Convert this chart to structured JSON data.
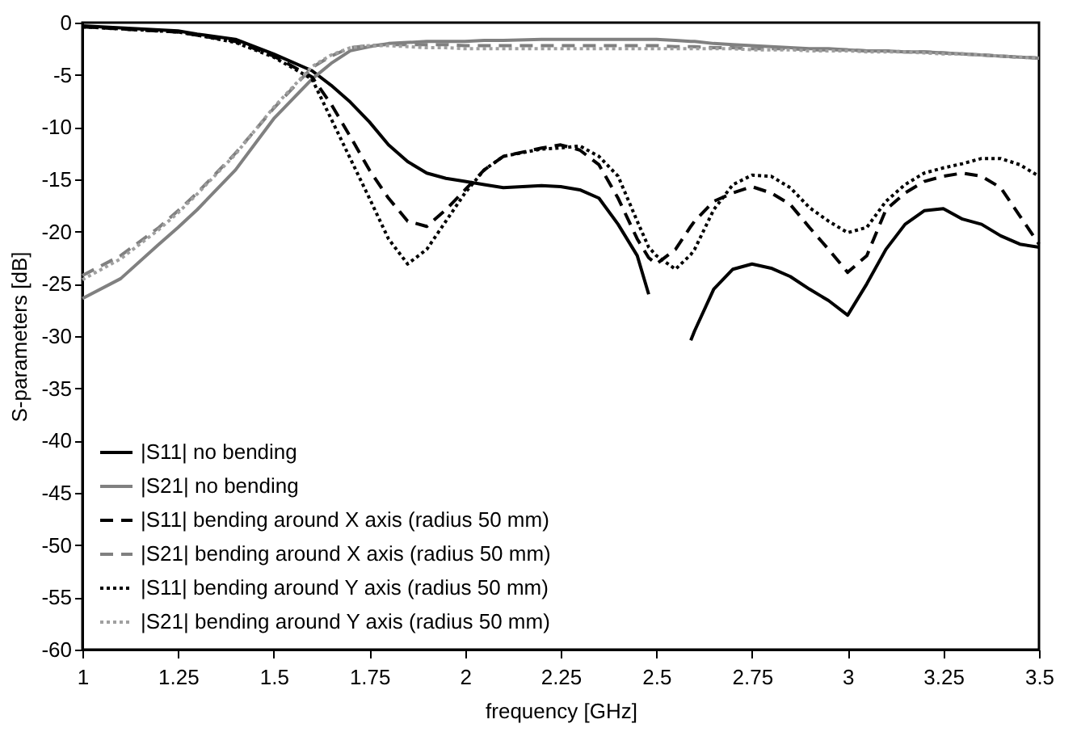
{
  "chart_data": {
    "type": "line",
    "xlabel": "frequency [GHz]",
    "ylabel": "S-parameters [dB]",
    "xlim": [
      1,
      3.5
    ],
    "xticks": [
      1,
      1.25,
      1.5,
      1.75,
      2,
      2.25,
      2.5,
      2.75,
      3,
      3.25,
      3.5
    ],
    "ylim": [
      -60,
      0
    ],
    "yticks": [
      -60,
      -55,
      -50,
      -45,
      -40,
      -35,
      -30,
      -25,
      -20,
      -15,
      -10,
      -5,
      0
    ],
    "grid": false,
    "legend": "bottom left",
    "marker": "none",
    "x": [
      1,
      1.1,
      1.2,
      1.25,
      1.3,
      1.4,
      1.5,
      1.6,
      1.65,
      1.7,
      1.75,
      1.8,
      1.85,
      1.9,
      1.95,
      2,
      2.05,
      2.1,
      2.2,
      2.25,
      2.3,
      2.35,
      2.4,
      2.45,
      2.48,
      2.5,
      2.55,
      2.59,
      2.6,
      2.65,
      2.7,
      2.75,
      2.8,
      2.85,
      2.9,
      2.95,
      3,
      3.05,
      3.1,
      3.15,
      3.2,
      3.25,
      3.3,
      3.35,
      3.4,
      3.45,
      3.5
    ],
    "series": [
      {
        "name": "|S11| no bending",
        "color": "#000000",
        "line_style": "solid",
        "values": [
          -0.3,
          -0.5,
          -0.7,
          -0.8,
          -1.1,
          -1.6,
          -3,
          -4.6,
          -6,
          -7.6,
          -9.5,
          -11.7,
          -13.3,
          -14.4,
          -14.9,
          -15.2,
          -15.5,
          -15.8,
          -15.6,
          -15.7,
          -16.0,
          -16.8,
          -19.3,
          -22.3,
          -26,
          null,
          null,
          -30.4,
          -29.5,
          -25.5,
          -23.6,
          -23.1,
          -23.5,
          -24.3,
          -25.5,
          -26.6,
          -28,
          -25,
          -21.7,
          -19.3,
          -18,
          -17.8,
          -18.8,
          -19.3,
          -20.4,
          -21.2,
          -21.5
        ]
      },
      {
        "name": "|S21| no bending",
        "color": "#808080",
        "line_style": "solid",
        "values": [
          -26.4,
          -24.5,
          -21.2,
          -19.6,
          -17.9,
          -14.1,
          -9.2,
          -5.4,
          -3.9,
          -2.7,
          -2.3,
          -2.0,
          -1.9,
          -1.8,
          -1.8,
          -1.8,
          -1.7,
          -1.7,
          -1.6,
          -1.6,
          -1.6,
          -1.6,
          -1.6,
          -1.6,
          -1.6,
          -1.6,
          -1.7,
          -1.8,
          -1.8,
          -2.0,
          -2.1,
          -2.2,
          -2.3,
          -2.4,
          -2.5,
          -2.5,
          -2.6,
          -2.7,
          -2.7,
          -2.8,
          -2.8,
          -2.9,
          -3.0,
          -3.1,
          -3.2,
          -3.3,
          -3.4
        ]
      },
      {
        "name": "|S11| bending around X axis (radius 50 mm)",
        "color": "#000000",
        "line_style": "dashed",
        "values": [
          -0.4,
          -0.6,
          -0.8,
          -0.9,
          -1.2,
          -1.8,
          -3.2,
          -5.2,
          -7.8,
          -10.9,
          -14.1,
          -16.8,
          -19,
          -19.5,
          -17.9,
          -16,
          -14.1,
          -12.8,
          -12,
          -11.7,
          -12.2,
          -13.6,
          -16.8,
          -20.7,
          -22.5,
          -23.1,
          -21.7,
          -19.5,
          -19,
          -17.1,
          -16.3,
          -15.7,
          -16.3,
          -17.4,
          -19.6,
          -21.7,
          -23.9,
          -22.3,
          -17.9,
          -16.3,
          -15.2,
          -14.7,
          -14.4,
          -14.7,
          -15.8,
          -18.5,
          -21.2
        ]
      },
      {
        "name": "|S21| bending around X axis (radius 50 mm)",
        "color": "#808080",
        "line_style": "dashed",
        "values": [
          -24.2,
          -22.3,
          -19.6,
          -18.0,
          -16.3,
          -12.5,
          -8.2,
          -4.3,
          -3.2,
          -2.4,
          -2.2,
          -2.1,
          -2.1,
          -2.1,
          -2.1,
          -2.2,
          -2.2,
          -2.2,
          -2.2,
          -2.2,
          -2.2,
          -2.2,
          -2.2,
          -2.2,
          -2.2,
          -2.2,
          -2.3,
          -2.3,
          -2.3,
          -2.4,
          -2.4,
          -2.5,
          -2.5,
          -2.5,
          -2.6,
          -2.6,
          -2.6,
          -2.7,
          -2.7,
          -2.8,
          -2.8,
          -2.9,
          -3.0,
          -3.1,
          -3.2,
          -3.3,
          -3.4
        ]
      },
      {
        "name": "|S11| bending around Y axis (radius 50 mm)",
        "color": "#000000",
        "line_style": "dotted",
        "values": [
          -0.4,
          -0.6,
          -0.8,
          -0.9,
          -1.2,
          -1.9,
          -3.3,
          -5.4,
          -9.2,
          -13,
          -16.8,
          -20.7,
          -23.1,
          -21.7,
          -19,
          -16.3,
          -14.1,
          -12.8,
          -12.1,
          -12.0,
          -11.8,
          -12.8,
          -14.7,
          -19,
          -21.5,
          -22.3,
          -23.6,
          -22.2,
          -21.7,
          -17.9,
          -15.5,
          -14.6,
          -14.7,
          -15.8,
          -17.7,
          -19,
          -20.1,
          -19.6,
          -17.1,
          -15.5,
          -14.4,
          -13.9,
          -13.5,
          -13,
          -13,
          -13.6,
          -14.7
        ]
      },
      {
        "name": "|S21| bending around Y axis (radius 50 mm)",
        "color": "#a0a0a0",
        "line_style": "dotted",
        "values": [
          -24.6,
          -22.6,
          -19.8,
          -18.2,
          -16.4,
          -12.6,
          -8.1,
          -4.2,
          -3.1,
          -2.4,
          -2.2,
          -2.2,
          -2.3,
          -2.4,
          -2.4,
          -2.5,
          -2.5,
          -2.5,
          -2.5,
          -2.5,
          -2.5,
          -2.5,
          -2.5,
          -2.5,
          -2.5,
          -2.5,
          -2.5,
          -2.5,
          -2.5,
          -2.5,
          -2.5,
          -2.6,
          -2.6,
          -2.6,
          -2.7,
          -2.7,
          -2.7,
          -2.8,
          -2.8,
          -2.8,
          -2.9,
          -3.0,
          -3.0,
          -3.1,
          -3.2,
          -3.3,
          -3.4
        ]
      }
    ]
  }
}
